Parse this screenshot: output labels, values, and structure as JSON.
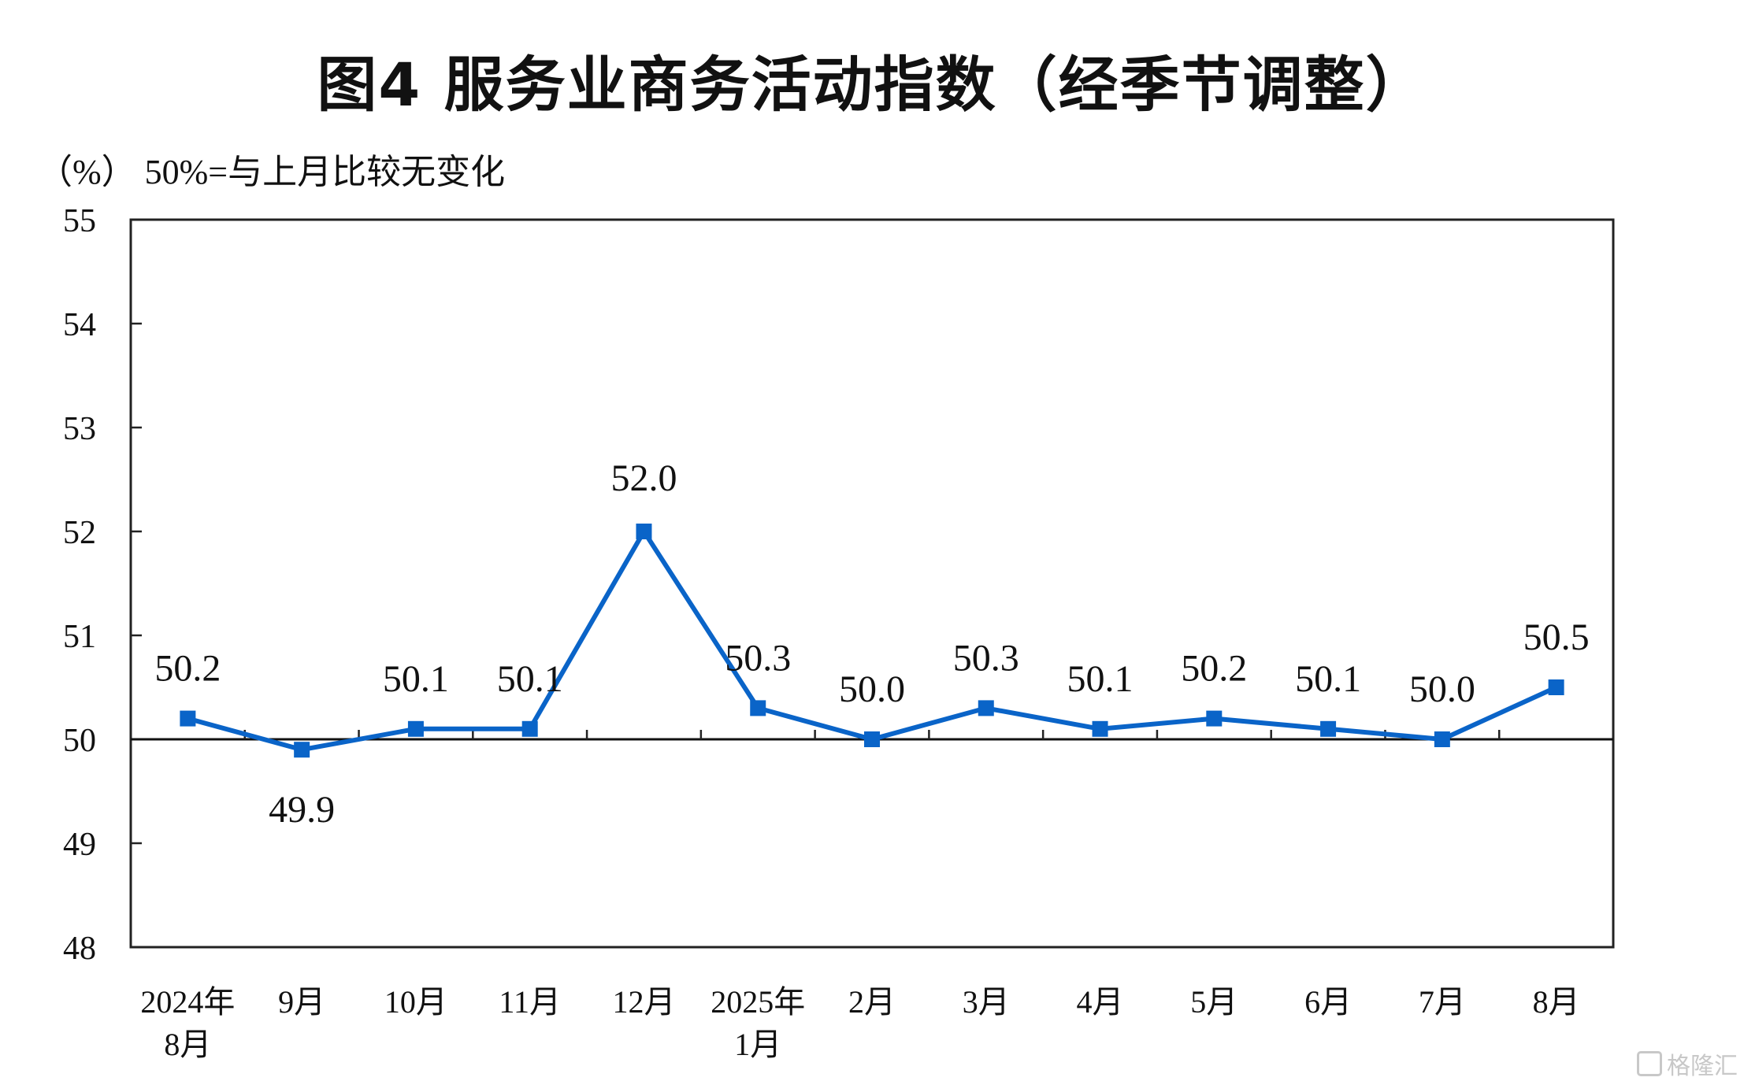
{
  "title": "图4  服务业商务活动指数（经季节调整）",
  "y_unit_note": "（%）  50%=与上月比较无变化",
  "watermark": "格隆汇",
  "chart_data": {
    "type": "line",
    "title": "图4  服务业商务活动指数（经季节调整）",
    "ylabel": "（%）",
    "reference_note": "50%=与上月比较无变化",
    "categories": [
      [
        "2024年",
        "8月"
      ],
      [
        "9月"
      ],
      [
        "10月"
      ],
      [
        "11月"
      ],
      [
        "12月"
      ],
      [
        "2025年",
        "1月"
      ],
      [
        "2月"
      ],
      [
        "3月"
      ],
      [
        "4月"
      ],
      [
        "5月"
      ],
      [
        "6月"
      ],
      [
        "7月"
      ],
      [
        "8月"
      ]
    ],
    "series": [
      {
        "values": [
          50.2,
          49.9,
          50.1,
          50.1,
          52.0,
          50.3,
          50.0,
          50.3,
          50.1,
          50.2,
          50.1,
          50.0,
          50.5
        ]
      }
    ],
    "data_labels": [
      "50.2",
      "49.9",
      "50.1",
      "50.1",
      "52.0",
      "50.3",
      "50.0",
      "50.3",
      "50.1",
      "50.2",
      "50.1",
      "50.0",
      "50.5"
    ],
    "ylim": [
      48,
      55
    ],
    "yticks": [
      48,
      49,
      50,
      51,
      52,
      53,
      54,
      55
    ],
    "reference_line": 50,
    "grid": false,
    "legend": "none",
    "line_color": "#0a64c8",
    "marker": "square"
  }
}
